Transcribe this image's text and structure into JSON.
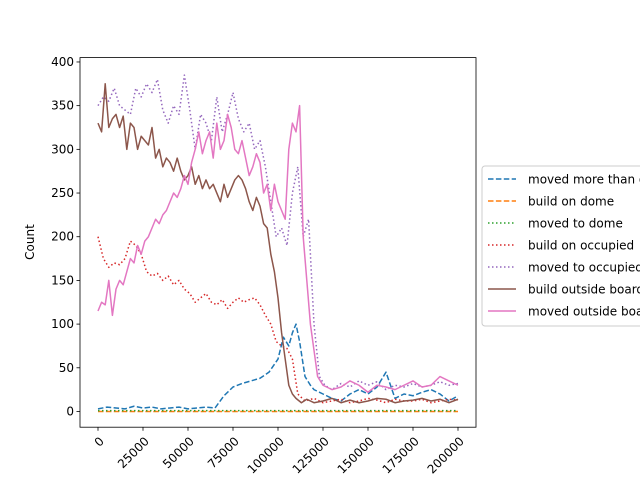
{
  "chart_data": {
    "type": "line",
    "title": "",
    "xlabel": "",
    "ylabel": "Count",
    "xlim": [
      -10000,
      210000
    ],
    "ylim": [
      -18,
      405
    ],
    "xticks": [
      0,
      25000,
      50000,
      75000,
      100000,
      125000,
      150000,
      175000,
      200000
    ],
    "yticks": [
      0,
      50,
      100,
      150,
      200,
      250,
      300,
      350,
      400
    ],
    "legend_position": "right",
    "grid": false,
    "series": [
      {
        "name": "moved more than one",
        "color": "#1f77b4",
        "dash": "dashed",
        "x": [
          0,
          5000,
          10000,
          15000,
          20000,
          25000,
          30000,
          35000,
          40000,
          45000,
          50000,
          55000,
          60000,
          65000,
          70000,
          75000,
          80000,
          85000,
          90000,
          95000,
          100000,
          103000,
          106000,
          108000,
          110000,
          112000,
          115000,
          118000,
          120000,
          125000,
          130000,
          135000,
          140000,
          145000,
          150000,
          155000,
          160000,
          165000,
          170000,
          175000,
          180000,
          185000,
          190000,
          195000,
          200000
        ],
        "y": [
          3,
          5,
          4,
          3,
          6,
          4,
          5,
          3,
          4,
          5,
          3,
          4,
          5,
          4,
          18,
          28,
          32,
          35,
          38,
          45,
          60,
          85,
          75,
          90,
          100,
          80,
          40,
          30,
          25,
          20,
          15,
          12,
          20,
          25,
          20,
          28,
          45,
          15,
          20,
          18,
          22,
          25,
          20,
          12,
          18
        ]
      },
      {
        "name": "build on dome",
        "color": "#ff7f0e",
        "dash": "dashed",
        "x": [
          0,
          25000,
          50000,
          75000,
          100000,
          125000,
          150000,
          175000,
          200000
        ],
        "y": [
          0,
          0,
          0,
          0,
          0,
          0,
          0,
          0,
          0
        ]
      },
      {
        "name": "moved to dome",
        "color": "#2ca02c",
        "dash": "dotted",
        "x": [
          0,
          25000,
          50000,
          75000,
          100000,
          125000,
          150000,
          175000,
          200000
        ],
        "y": [
          1,
          1,
          1,
          1,
          1,
          1,
          1,
          1,
          1
        ]
      },
      {
        "name": "build on occupied",
        "color": "#d62728",
        "dash": "dotted",
        "x": [
          0,
          3000,
          6000,
          9000,
          12000,
          15000,
          18000,
          21000,
          24000,
          27000,
          30000,
          33000,
          36000,
          39000,
          42000,
          45000,
          48000,
          51000,
          54000,
          57000,
          60000,
          63000,
          66000,
          69000,
          72000,
          75000,
          78000,
          81000,
          84000,
          87000,
          90000,
          93000,
          96000,
          99000,
          102000,
          105000,
          108000,
          111000,
          115000,
          120000,
          125000,
          130000,
          135000,
          140000,
          145000,
          150000,
          155000,
          160000,
          165000,
          170000,
          175000,
          180000,
          185000,
          190000,
          195000,
          200000
        ],
        "y": [
          200,
          175,
          165,
          170,
          168,
          175,
          195,
          190,
          180,
          160,
          155,
          158,
          150,
          155,
          145,
          150,
          140,
          135,
          125,
          130,
          135,
          125,
          122,
          128,
          118,
          125,
          130,
          125,
          128,
          130,
          122,
          110,
          100,
          80,
          75,
          72,
          60,
          20,
          12,
          15,
          10,
          12,
          14,
          10,
          12,
          15,
          13,
          10,
          14,
          12,
          12,
          14,
          10,
          12,
          14,
          13
        ]
      },
      {
        "name": "moved to occupied",
        "color": "#9467bd",
        "dash": "dotted",
        "x": [
          0,
          3000,
          6000,
          9000,
          12000,
          15000,
          18000,
          21000,
          24000,
          27000,
          30000,
          33000,
          36000,
          39000,
          42000,
          45000,
          48000,
          51000,
          54000,
          57000,
          60000,
          63000,
          66000,
          69000,
          72000,
          75000,
          78000,
          81000,
          84000,
          87000,
          90000,
          93000,
          96000,
          99000,
          102000,
          105000,
          108000,
          111000,
          114000,
          117000,
          120000,
          123000,
          126000,
          130000,
          135000,
          140000,
          145000,
          150000,
          155000,
          160000,
          165000,
          170000,
          175000,
          180000,
          185000,
          190000,
          195000,
          200000
        ],
        "y": [
          350,
          360,
          355,
          370,
          350,
          345,
          340,
          370,
          360,
          375,
          365,
          380,
          345,
          330,
          350,
          340,
          385,
          345,
          300,
          340,
          330,
          310,
          360,
          320,
          340,
          365,
          335,
          320,
          330,
          300,
          310,
          280,
          240,
          200,
          210,
          190,
          250,
          280,
          200,
          220,
          100,
          40,
          30,
          25,
          32,
          28,
          35,
          30,
          34,
          25,
          30,
          28,
          32,
          28,
          30,
          34,
          30,
          32
        ]
      },
      {
        "name": "build outside board",
        "color": "#8c564b",
        "dash": "solid",
        "x": [
          0,
          2000,
          4000,
          6000,
          8000,
          10000,
          12000,
          14000,
          16000,
          18000,
          20000,
          22000,
          24000,
          26000,
          28000,
          30000,
          32000,
          34000,
          36000,
          38000,
          40000,
          42000,
          44000,
          46000,
          48000,
          50000,
          52000,
          54000,
          56000,
          58000,
          60000,
          62000,
          64000,
          66000,
          68000,
          70000,
          72000,
          74000,
          76000,
          78000,
          80000,
          82000,
          84000,
          86000,
          88000,
          90000,
          92000,
          94000,
          96000,
          98000,
          100000,
          102000,
          104000,
          106000,
          108000,
          110000,
          113000,
          116000,
          120000,
          125000,
          130000,
          135000,
          140000,
          145000,
          150000,
          155000,
          160000,
          165000,
          170000,
          175000,
          180000,
          185000,
          190000,
          195000,
          200000
        ],
        "y": [
          330,
          320,
          375,
          325,
          335,
          340,
          325,
          338,
          300,
          330,
          325,
          300,
          315,
          310,
          305,
          325,
          290,
          300,
          280,
          290,
          285,
          275,
          290,
          275,
          265,
          270,
          280,
          260,
          270,
          255,
          265,
          255,
          260,
          250,
          240,
          260,
          245,
          255,
          265,
          270,
          265,
          255,
          240,
          230,
          245,
          235,
          215,
          210,
          180,
          160,
          130,
          90,
          60,
          30,
          20,
          15,
          10,
          14,
          10,
          12,
          15,
          10,
          13,
          10,
          12,
          15,
          14,
          10,
          12,
          13,
          15,
          12,
          14,
          10,
          14
        ]
      },
      {
        "name": "moved outside board",
        "color": "#e377c2",
        "dash": "solid",
        "x": [
          0,
          2000,
          4000,
          6000,
          8000,
          10000,
          12000,
          14000,
          16000,
          18000,
          20000,
          22000,
          24000,
          26000,
          28000,
          30000,
          32000,
          34000,
          36000,
          38000,
          40000,
          42000,
          44000,
          46000,
          48000,
          50000,
          52000,
          54000,
          56000,
          58000,
          60000,
          62000,
          64000,
          66000,
          68000,
          70000,
          72000,
          74000,
          76000,
          78000,
          80000,
          82000,
          84000,
          86000,
          88000,
          90000,
          92000,
          94000,
          96000,
          98000,
          100000,
          102000,
          104000,
          106000,
          108000,
          110000,
          112000,
          114000,
          116000,
          118000,
          120000,
          122000,
          125000,
          130000,
          135000,
          140000,
          145000,
          150000,
          155000,
          160000,
          165000,
          170000,
          175000,
          180000,
          185000,
          190000,
          195000,
          200000
        ],
        "y": [
          115,
          125,
          122,
          150,
          110,
          140,
          150,
          145,
          160,
          175,
          170,
          190,
          180,
          195,
          200,
          210,
          220,
          215,
          225,
          230,
          240,
          250,
          245,
          255,
          270,
          260,
          285,
          300,
          320,
          295,
          310,
          320,
          290,
          330,
          300,
          310,
          340,
          325,
          300,
          295,
          310,
          290,
          270,
          280,
          295,
          285,
          250,
          260,
          230,
          260,
          240,
          230,
          220,
          300,
          330,
          320,
          350,
          200,
          150,
          100,
          70,
          40,
          30,
          25,
          28,
          35,
          30,
          22,
          30,
          28,
          25,
          30,
          35,
          28,
          30,
          40,
          35,
          30
        ]
      }
    ]
  }
}
